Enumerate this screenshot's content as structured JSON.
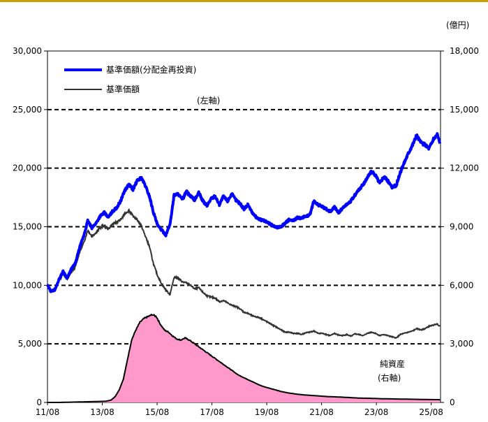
{
  "chart_data": {
    "type": "area",
    "unit_right": "(億円)",
    "annotation_left": "(左軸)",
    "annotation_right": [
      "純資産",
      "(右軸)"
    ],
    "x_tick_labels": [
      "11/08",
      "13/08",
      "15/08",
      "17/08",
      "19/08",
      "21/08",
      "23/08",
      "25/08"
    ],
    "x_ticks": [
      2011.58,
      2013.58,
      2015.58,
      2017.58,
      2019.58,
      2021.58,
      2023.58,
      2025.58
    ],
    "xlim": [
      2011.58,
      2025.92
    ],
    "y_left": {
      "lim": [
        0,
        30000
      ],
      "ticks": [
        0,
        5000,
        10000,
        15000,
        20000,
        25000,
        30000
      ],
      "tick_labels": [
        "0",
        "5,000",
        "10,000",
        "15,000",
        "20,000",
        "25,000",
        "30,000"
      ]
    },
    "y_right": {
      "lim": [
        0,
        18000
      ],
      "ticks": [
        0,
        3000,
        6000,
        9000,
        12000,
        15000,
        18000
      ],
      "tick_labels": [
        "0",
        "3,000",
        "6,000",
        "9,000",
        "12,000",
        "15,000",
        "18,000"
      ]
    },
    "grid": {
      "dashed_y": [
        5000,
        10000,
        15000,
        20000,
        25000
      ]
    },
    "colors": {
      "reinvested": "#0000ff",
      "nav": "#333333",
      "net_assets_fill": "#ff99cc",
      "net_assets_line": "#000000"
    },
    "series": [
      {
        "name": "基準価額(分配金再投資)",
        "axis": "left",
        "x": [
          2011.58,
          2011.7,
          2011.85,
          2012.0,
          2012.15,
          2012.3,
          2012.45,
          2012.6,
          2012.75,
          2012.9,
          2013.05,
          2013.2,
          2013.35,
          2013.5,
          2013.65,
          2013.8,
          2013.95,
          2014.1,
          2014.25,
          2014.4,
          2014.55,
          2014.7,
          2014.85,
          2015.0,
          2015.15,
          2015.3,
          2015.45,
          2015.6,
          2015.75,
          2015.9,
          2016.05,
          2016.2,
          2016.35,
          2016.5,
          2016.65,
          2016.8,
          2016.95,
          2017.1,
          2017.25,
          2017.4,
          2017.55,
          2017.7,
          2017.85,
          2018.0,
          2018.15,
          2018.3,
          2018.45,
          2018.6,
          2018.75,
          2018.9,
          2019.05,
          2019.2,
          2019.35,
          2019.5,
          2019.65,
          2019.8,
          2019.95,
          2020.1,
          2020.25,
          2020.4,
          2020.55,
          2020.7,
          2020.85,
          2021.0,
          2021.15,
          2021.3,
          2021.45,
          2021.6,
          2021.75,
          2021.9,
          2022.05,
          2022.2,
          2022.35,
          2022.5,
          2022.65,
          2022.8,
          2022.95,
          2023.1,
          2023.25,
          2023.4,
          2023.55,
          2023.7,
          2023.85,
          2024.0,
          2024.15,
          2024.3,
          2024.45,
          2024.6,
          2024.75,
          2024.9,
          2025.05,
          2025.2,
          2025.35,
          2025.5,
          2025.65,
          2025.8,
          2025.9
        ],
        "values": [
          10000,
          9500,
          9600,
          10500,
          11200,
          10600,
          11400,
          11900,
          13200,
          14200,
          15500,
          14900,
          15300,
          15900,
          16200,
          15800,
          16300,
          16600,
          17200,
          18100,
          18600,
          18200,
          18900,
          19200,
          18500,
          17600,
          16200,
          15100,
          14700,
          14300,
          15200,
          17700,
          17800,
          17300,
          18000,
          17600,
          17300,
          17900,
          17200,
          16800,
          17400,
          17600,
          16900,
          17600,
          17200,
          17800,
          17300,
          17000,
          16500,
          16900,
          16200,
          15800,
          15600,
          15500,
          15300,
          15100,
          14950,
          15000,
          15300,
          15600,
          15500,
          15800,
          15700,
          15900,
          16000,
          17200,
          16900,
          16700,
          16500,
          16300,
          16700,
          16200,
          16600,
          16900,
          17200,
          17700,
          18200,
          18600,
          19200,
          19700,
          19400,
          18700,
          19300,
          18900,
          18400,
          18500,
          19600,
          20500,
          21300,
          22000,
          22800,
          22200,
          22000,
          21700,
          22400,
          22900,
          22100
        ]
      },
      {
        "name": "基準価額",
        "axis": "left",
        "x": [
          2011.58,
          2011.7,
          2011.85,
          2012.0,
          2012.15,
          2012.3,
          2012.45,
          2012.6,
          2012.75,
          2012.9,
          2013.05,
          2013.2,
          2013.35,
          2013.5,
          2013.65,
          2013.8,
          2013.95,
          2014.1,
          2014.25,
          2014.4,
          2014.55,
          2014.7,
          2014.85,
          2015.0,
          2015.15,
          2015.3,
          2015.45,
          2015.6,
          2015.75,
          2015.9,
          2016.05,
          2016.2,
          2016.35,
          2016.5,
          2016.65,
          2016.8,
          2016.95,
          2017.1,
          2017.25,
          2017.4,
          2017.55,
          2017.7,
          2017.85,
          2018.0,
          2018.15,
          2018.3,
          2018.45,
          2018.6,
          2018.75,
          2018.9,
          2019.05,
          2019.2,
          2019.35,
          2019.5,
          2019.65,
          2019.8,
          2019.95,
          2020.1,
          2020.25,
          2020.4,
          2020.55,
          2020.7,
          2020.85,
          2021.0,
          2021.15,
          2021.3,
          2021.45,
          2021.6,
          2021.75,
          2021.9,
          2022.05,
          2022.2,
          2022.35,
          2022.5,
          2022.65,
          2022.8,
          2022.95,
          2023.1,
          2023.25,
          2023.4,
          2023.55,
          2023.7,
          2023.85,
          2024.0,
          2024.15,
          2024.3,
          2024.45,
          2024.6,
          2024.75,
          2024.9,
          2025.05,
          2025.2,
          2025.35,
          2025.5,
          2025.65,
          2025.8,
          2025.9
        ],
        "values": [
          10000,
          9500,
          9700,
          10400,
          11000,
          10500,
          11100,
          11600,
          12800,
          13600,
          14700,
          14200,
          14500,
          14900,
          15100,
          14800,
          15200,
          15400,
          15600,
          16100,
          16400,
          15900,
          15600,
          15100,
          14200,
          13300,
          11800,
          10800,
          10100,
          9600,
          9200,
          10700,
          10600,
          10300,
          10200,
          10000,
          9700,
          9800,
          9400,
          9100,
          9000,
          8900,
          8600,
          8700,
          8500,
          8300,
          8200,
          8000,
          7700,
          7600,
          7400,
          7300,
          7200,
          7000,
          6800,
          6600,
          6400,
          6200,
          6000,
          6000,
          5900,
          5900,
          5800,
          5950,
          6000,
          6100,
          5900,
          5900,
          5800,
          5700,
          5900,
          5750,
          5700,
          5800,
          5650,
          5850,
          5800,
          5700,
          5900,
          6000,
          5900,
          5700,
          5800,
          5700,
          5600,
          5500,
          5800,
          5900,
          6000,
          6100,
          6300,
          6200,
          6300,
          6500,
          6600,
          6700,
          6500
        ]
      },
      {
        "name": "純資産",
        "axis": "right",
        "x": [
          2011.58,
          2012.0,
          2012.6,
          2013.2,
          2013.7,
          2013.9,
          2014.05,
          2014.2,
          2014.35,
          2014.5,
          2014.65,
          2014.8,
          2014.95,
          2015.1,
          2015.25,
          2015.4,
          2015.55,
          2015.7,
          2015.85,
          2016.0,
          2016.15,
          2016.3,
          2016.45,
          2016.6,
          2016.75,
          2016.9,
          2017.05,
          2017.2,
          2017.35,
          2017.5,
          2017.65,
          2017.8,
          2017.95,
          2018.1,
          2018.25,
          2018.4,
          2018.55,
          2018.7,
          2018.85,
          2019.0,
          2019.15,
          2019.3,
          2019.45,
          2019.6,
          2019.75,
          2019.9,
          2020.1,
          2020.4,
          2020.7,
          2021.0,
          2021.4,
          2021.8,
          2022.2,
          2022.6,
          2023.0,
          2023.4,
          2023.8,
          2024.2,
          2024.6,
          2025.0,
          2025.4,
          2025.9
        ],
        "values": [
          0,
          0,
          20,
          40,
          60,
          120,
          300,
          650,
          1200,
          2200,
          3200,
          3700,
          4100,
          4300,
          4400,
          4500,
          4400,
          4000,
          3700,
          3600,
          3400,
          3250,
          3200,
          3300,
          3200,
          3050,
          2900,
          2750,
          2600,
          2450,
          2300,
          2150,
          2000,
          1850,
          1700,
          1550,
          1400,
          1300,
          1200,
          1100,
          1000,
          900,
          820,
          760,
          700,
          640,
          560,
          480,
          420,
          380,
          340,
          300,
          280,
          250,
          220,
          210,
          190,
          180,
          170,
          160,
          150,
          140
        ]
      }
    ]
  }
}
